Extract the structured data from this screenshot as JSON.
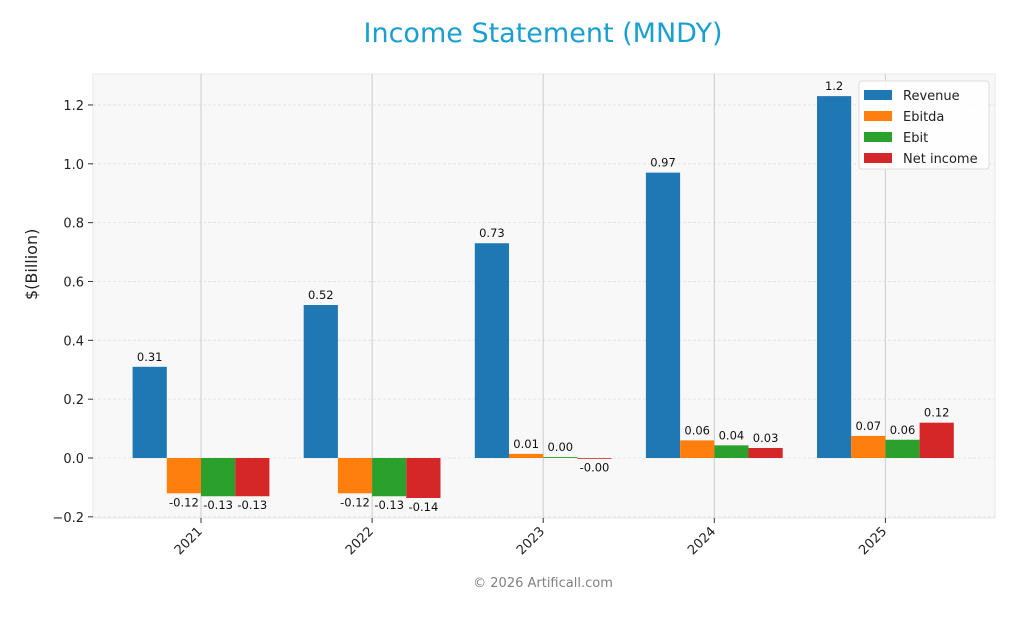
{
  "title": "Income Statement (MNDY)",
  "footer": "© 2026 Artificall.com",
  "colors": {
    "title": "#1a9fd0",
    "Revenue": "#1f77b4",
    "Ebitda": "#ff7f0e",
    "Ebit": "#2ca02c",
    "Net income": "#d62728",
    "plot_bg": "#f8f8f8",
    "grid": "#e0e0e0"
  },
  "chart_data": {
    "type": "bar",
    "title": "Income Statement (MNDY)",
    "xlabel": "",
    "ylabel": "$(Billion)",
    "ylim": [
      -0.2,
      1.3
    ],
    "yticks": [
      -0.2,
      0.0,
      0.2,
      0.4,
      0.6,
      0.8,
      1.0,
      1.2
    ],
    "ytick_labels": [
      "−0.2",
      "0.0",
      "0.2",
      "0.4",
      "0.6",
      "0.8",
      "1.0",
      "1.2"
    ],
    "categories": [
      "2021",
      "2022",
      "2023",
      "2024",
      "2025"
    ],
    "legend_position": "upper right",
    "grid": true,
    "series": [
      {
        "name": "Revenue",
        "values": [
          0.31,
          0.52,
          0.73,
          0.97,
          1.23
        ],
        "labels": [
          "0.31",
          "0.52",
          "0.73",
          "0.97",
          "1.2"
        ]
      },
      {
        "name": "Ebitda",
        "values": [
          -0.12,
          -0.12,
          0.014,
          0.06,
          0.075
        ],
        "labels": [
          "-0.12",
          "-0.12",
          "0.01",
          "0.06",
          "0.07"
        ]
      },
      {
        "name": "Ebit",
        "values": [
          -0.13,
          -0.13,
          0.003,
          0.043,
          0.062
        ],
        "labels": [
          "-0.13",
          "-0.13",
          "0.00",
          "0.04",
          "0.06"
        ]
      },
      {
        "name": "Net income",
        "values": [
          -0.13,
          -0.136,
          -0.001,
          0.034,
          0.12
        ],
        "labels": [
          "-0.13",
          "-0.14",
          "-0.00",
          "0.03",
          "0.12"
        ]
      }
    ]
  }
}
